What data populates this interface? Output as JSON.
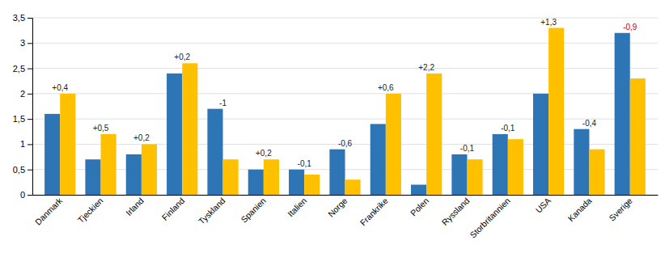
{
  "chart_data": {
    "type": "bar",
    "categories": [
      "Danmark",
      "Tjeckien",
      "Irland",
      "Finland",
      "Tyskland",
      "Spanien",
      "Italien",
      "Norge",
      "Frankrike",
      "Polen",
      "Ryssland",
      "Storbritannien",
      "USA",
      "Kanada",
      "Sverige"
    ],
    "series": [
      {
        "color": "#2E75B6",
        "values": [
          1.6,
          0.7,
          0.8,
          2.4,
          1.7,
          0.5,
          0.5,
          0.9,
          1.4,
          0.2,
          0.8,
          1.2,
          2.0,
          1.3,
          3.2
        ]
      },
      {
        "color": "#FFC000",
        "values": [
          2.0,
          1.2,
          1.0,
          2.6,
          0.7,
          0.7,
          0.4,
          0.3,
          2.0,
          2.4,
          0.7,
          1.1,
          3.3,
          0.9,
          2.3
        ]
      }
    ],
    "annotations": [
      {
        "text": "+0,4",
        "color": "#222222"
      },
      {
        "text": "+0,5",
        "color": "#222222"
      },
      {
        "text": "+0,2",
        "color": "#222222"
      },
      {
        "text": "+0,2",
        "color": "#222222"
      },
      {
        "text": "-1",
        "color": "#222222"
      },
      {
        "text": "+0,2",
        "color": "#222222"
      },
      {
        "text": "-0,1",
        "color": "#222222"
      },
      {
        "text": "-0,6",
        "color": "#222222"
      },
      {
        "text": "+0,6",
        "color": "#222222"
      },
      {
        "text": "+2,2",
        "color": "#222222"
      },
      {
        "text": "-0,1",
        "color": "#222222"
      },
      {
        "text": "-0,1",
        "color": "#222222"
      },
      {
        "text": "+1,3",
        "color": "#222222"
      },
      {
        "text": "-0,4",
        "color": "#222222"
      },
      {
        "text": "-0,9",
        "color": "#CC0000"
      }
    ],
    "ylim": [
      0,
      3.5
    ],
    "yticks": [
      0,
      {
        "value": 0.5,
        "label": "0,5"
      },
      1,
      {
        "value": 1.5,
        "label": "1,5"
      },
      2,
      {
        "value": 2.5,
        "label": "2,5"
      },
      3,
      {
        "value": 3.5,
        "label": "3,5"
      }
    ],
    "grid": true
  }
}
